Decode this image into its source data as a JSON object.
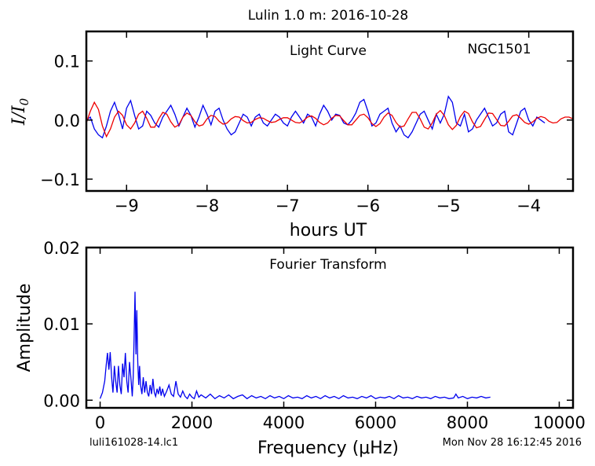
{
  "figure": {
    "title": "Lulin 1.0 m:  2016-10-28",
    "footer_left": "luli161028-14.lc1",
    "footer_right": "Mon Nov 28 16:12:45 2016"
  },
  "chart_data": [
    {
      "type": "line",
      "panel": "light-curve",
      "annotation": "Light Curve",
      "object": "NGC1501",
      "xlabel": "hours UT",
      "ylabel_main": "I/I",
      "ylabel_sub": "0",
      "xlim": [
        -9.5,
        -3.45
      ],
      "ylim": [
        -0.12,
        0.15
      ],
      "xticks": [
        -9,
        -8,
        -7,
        -6,
        -5,
        -4
      ],
      "xtick_labels": [
        "−9",
        "−8",
        "−7",
        "−6",
        "−5",
        "−4"
      ],
      "yticks": [
        -0.1,
        0.0,
        0.1
      ],
      "ytick_labels": [
        "−0.1",
        "0.0",
        "0.1"
      ],
      "grid": false,
      "colors": {
        "data": "#0000ee",
        "fit": "#ee0000"
      },
      "series": [
        {
          "role": "data",
          "x": [
            -9.5,
            -9.45,
            -9.4,
            -9.35,
            -9.3,
            -9.25,
            -9.2,
            -9.15,
            -9.1,
            -9.05,
            -9.0,
            -8.95,
            -8.9,
            -8.85,
            -8.8,
            -8.75,
            -8.7,
            -8.65,
            -8.6,
            -8.55,
            -8.5,
            -8.45,
            -8.4,
            -8.35,
            -8.3,
            -8.25,
            -8.2,
            -8.15,
            -8.1,
            -8.05,
            -8.0,
            -7.95,
            -7.9,
            -7.85,
            -7.8,
            -7.75,
            -7.7,
            -7.65,
            -7.6,
            -7.55,
            -7.5,
            -7.45,
            -7.4,
            -7.35,
            -7.3,
            -7.25,
            -7.2,
            -7.15,
            -7.1,
            -7.05,
            -7.0,
            -6.95,
            -6.9,
            -6.85,
            -6.8,
            -6.75,
            -6.7,
            -6.65,
            -6.6,
            -6.55,
            -6.5,
            -6.45,
            -6.4,
            -6.35,
            -6.3,
            -6.25,
            -6.2,
            -6.15,
            -6.1,
            -6.05,
            -6.0,
            -5.95,
            -5.9,
            -5.85,
            -5.8,
            -5.75,
            -5.7,
            -5.65,
            -5.6,
            -5.55,
            -5.5,
            -5.45,
            -5.4,
            -5.35,
            -5.3,
            -5.25,
            -5.2,
            -5.15,
            -5.1,
            -5.05,
            -5.0,
            -4.95,
            -4.9,
            -4.85,
            -4.8,
            -4.75,
            -4.7,
            -4.65,
            -4.6,
            -4.55,
            -4.5,
            -4.45,
            -4.4,
            -4.35,
            -4.3,
            -4.25,
            -4.2,
            -4.15,
            -4.1,
            -4.05,
            -4.0,
            -3.95,
            -3.9,
            -3.85,
            -3.8
          ],
          "y": [
            0.0,
            0.005,
            -0.015,
            -0.025,
            -0.03,
            -0.01,
            0.015,
            0.03,
            0.01,
            -0.015,
            0.02,
            0.033,
            0.008,
            -0.015,
            -0.01,
            0.015,
            0.008,
            -0.005,
            -0.012,
            0.005,
            0.015,
            0.025,
            0.01,
            -0.01,
            0.005,
            0.02,
            0.008,
            -0.012,
            0.005,
            0.025,
            0.01,
            -0.008,
            0.015,
            0.02,
            0.0,
            -0.015,
            -0.025,
            -0.02,
            -0.005,
            0.01,
            0.005,
            -0.01,
            0.005,
            0.01,
            -0.005,
            -0.01,
            0.0,
            0.01,
            0.005,
            -0.005,
            -0.01,
            0.005,
            0.015,
            0.005,
            -0.005,
            0.01,
            0.005,
            -0.01,
            0.01,
            0.025,
            0.015,
            0.0,
            0.01,
            0.008,
            -0.005,
            -0.008,
            0.0,
            0.012,
            0.03,
            0.035,
            0.015,
            -0.01,
            -0.005,
            0.01,
            0.015,
            0.02,
            -0.005,
            -0.02,
            -0.01,
            -0.025,
            -0.03,
            -0.02,
            -0.005,
            0.01,
            0.015,
            0.0,
            -0.015,
            0.01,
            -0.005,
            0.01,
            0.04,
            0.03,
            -0.005,
            -0.01,
            0.01,
            -0.02,
            -0.015,
            0.0,
            0.01,
            0.02,
            0.005,
            -0.01,
            -0.005,
            0.01,
            0.015,
            -0.02,
            -0.025,
            -0.005,
            0.015,
            0.02,
            0.0,
            -0.01,
            0.005,
            0.0,
            -0.005
          ]
        },
        {
          "role": "fit",
          "x": [
            -9.5,
            -9.45,
            -9.4,
            -9.35,
            -9.3,
            -9.25,
            -9.2,
            -9.15,
            -9.1,
            -9.05,
            -9.0,
            -8.95,
            -8.9,
            -8.85,
            -8.8,
            -8.75,
            -8.7,
            -8.65,
            -8.6,
            -8.55,
            -8.5,
            -8.45,
            -8.4,
            -8.35,
            -8.3,
            -8.25,
            -8.2,
            -8.15,
            -8.1,
            -8.05,
            -8.0,
            -7.95,
            -7.9,
            -7.85,
            -7.8,
            -7.75,
            -7.7,
            -7.65,
            -7.6,
            -7.55,
            -7.5,
            -7.45,
            -7.4,
            -7.35,
            -7.3,
            -7.25,
            -7.2,
            -7.15,
            -7.1,
            -7.05,
            -7.0,
            -6.95,
            -6.9,
            -6.85,
            -6.8,
            -6.75,
            -6.7,
            -6.65,
            -6.6,
            -6.55,
            -6.5,
            -6.45,
            -6.4,
            -6.35,
            -6.3,
            -6.25,
            -6.2,
            -6.15,
            -6.1,
            -6.05,
            -6.0,
            -5.95,
            -5.9,
            -5.85,
            -5.8,
            -5.75,
            -5.7,
            -5.65,
            -5.6,
            -5.55,
            -5.5,
            -5.45,
            -5.4,
            -5.35,
            -5.3,
            -5.25,
            -5.2,
            -5.15,
            -5.1,
            -5.05,
            -5.0,
            -4.95,
            -4.9,
            -4.85,
            -4.8,
            -4.75,
            -4.7,
            -4.65,
            -4.6,
            -4.55,
            -4.5,
            -4.45,
            -4.4,
            -4.35,
            -4.3,
            -4.25,
            -4.2,
            -4.15,
            -4.1,
            -4.05,
            -4.0,
            -3.95,
            -3.9,
            -3.85,
            -3.8,
            -3.75,
            -3.7,
            -3.65,
            -3.6,
            -3.55,
            -3.5,
            -3.45
          ],
          "y": [
            -0.005,
            0.015,
            0.03,
            0.018,
            -0.01,
            -0.028,
            -0.015,
            0.005,
            0.015,
            0.008,
            -0.008,
            -0.015,
            -0.005,
            0.01,
            0.015,
            0.003,
            -0.012,
            -0.012,
            0.002,
            0.013,
            0.01,
            -0.003,
            -0.012,
            -0.008,
            0.005,
            0.012,
            0.008,
            -0.003,
            -0.01,
            -0.008,
            0.002,
            0.008,
            0.006,
            -0.002,
            -0.007,
            -0.005,
            0.002,
            0.006,
            0.005,
            -0.001,
            -0.005,
            -0.004,
            0.001,
            0.004,
            0.003,
            -0.001,
            -0.004,
            -0.003,
            0.001,
            0.004,
            0.004,
            0.0,
            -0.004,
            -0.005,
            -0.001,
            0.005,
            0.007,
            0.003,
            -0.004,
            -0.008,
            -0.005,
            0.003,
            0.008,
            0.007,
            -0.001,
            -0.008,
            -0.008,
            0.0,
            0.008,
            0.01,
            0.004,
            -0.006,
            -0.011,
            -0.006,
            0.005,
            0.012,
            0.008,
            -0.004,
            -0.012,
            -0.01,
            0.002,
            0.013,
            0.013,
            0.002,
            -0.012,
            -0.015,
            -0.005,
            0.01,
            0.016,
            0.008,
            -0.008,
            -0.016,
            -0.009,
            0.006,
            0.015,
            0.011,
            -0.003,
            -0.013,
            -0.011,
            0.001,
            0.012,
            0.011,
            0.001,
            -0.009,
            -0.01,
            -0.002,
            0.007,
            0.009,
            0.003,
            -0.004,
            -0.007,
            -0.003,
            0.003,
            0.006,
            0.004,
            -0.002,
            -0.005,
            -0.004,
            0.002,
            0.005,
            0.005,
            0.002
          ]
        }
      ]
    },
    {
      "type": "line",
      "panel": "fourier-transform",
      "annotation": "Fourier Transform",
      "xlabel": "Frequency (μHz)",
      "ylabel": "Amplitude",
      "xlim": [
        -300,
        10300
      ],
      "ylim": [
        -0.001,
        0.02
      ],
      "xticks": [
        0,
        2000,
        4000,
        6000,
        8000,
        10000
      ],
      "xtick_labels": [
        "0",
        "2000",
        "4000",
        "6000",
        "8000",
        "10000"
      ],
      "yticks": [
        0.0,
        0.01,
        0.02
      ],
      "ytick_labels": [
        "0.00",
        "0.01",
        "0.02"
      ],
      "grid": false,
      "colors": {
        "spectrum": "#0000ee"
      },
      "series": [
        {
          "role": "spectrum",
          "x": [
            0,
            50,
            100,
            130,
            160,
            190,
            220,
            250,
            280,
            310,
            340,
            370,
            400,
            430,
            460,
            490,
            520,
            550,
            580,
            610,
            640,
            670,
            700,
            720,
            740,
            760,
            780,
            800,
            820,
            840,
            860,
            880,
            910,
            940,
            970,
            1000,
            1030,
            1060,
            1090,
            1120,
            1150,
            1180,
            1210,
            1240,
            1270,
            1300,
            1330,
            1360,
            1400,
            1450,
            1500,
            1550,
            1600,
            1650,
            1700,
            1750,
            1800,
            1850,
            1900,
            1950,
            2000,
            2050,
            2100,
            2150,
            2200,
            2300,
            2400,
            2500,
            2600,
            2700,
            2800,
            2900,
            3000,
            3100,
            3200,
            3300,
            3400,
            3500,
            3600,
            3700,
            3800,
            3900,
            4000,
            4100,
            4200,
            4300,
            4400,
            4500,
            4600,
            4700,
            4800,
            4900,
            5000,
            5100,
            5200,
            5300,
            5400,
            5500,
            5600,
            5700,
            5800,
            5900,
            6000,
            6100,
            6200,
            6300,
            6400,
            6500,
            6600,
            6700,
            6800,
            6900,
            7000,
            7100,
            7200,
            7300,
            7400,
            7500,
            7600,
            7700,
            7750,
            7800,
            7900,
            8000,
            8100,
            8200,
            8300,
            8400,
            8500
          ],
          "y": [
            0.0002,
            0.001,
            0.0025,
            0.0045,
            0.0062,
            0.004,
            0.0063,
            0.003,
            0.001,
            0.0045,
            0.0025,
            0.001,
            0.0045,
            0.002,
            0.0008,
            0.0048,
            0.003,
            0.0062,
            0.0025,
            0.001,
            0.005,
            0.003,
            0.0005,
            0.003,
            0.008,
            0.0142,
            0.006,
            0.0118,
            0.005,
            0.002,
            0.0045,
            0.002,
            0.0008,
            0.003,
            0.001,
            0.0025,
            0.001,
            0.0005,
            0.002,
            0.0008,
            0.0028,
            0.001,
            0.0005,
            0.0015,
            0.0008,
            0.0018,
            0.0006,
            0.0015,
            0.0005,
            0.0012,
            0.002,
            0.0008,
            0.0005,
            0.0025,
            0.0008,
            0.0004,
            0.0012,
            0.0005,
            0.0002,
            0.0008,
            0.0004,
            0.0002,
            0.0012,
            0.0004,
            0.0007,
            0.0003,
            0.0008,
            0.0002,
            0.0006,
            0.0003,
            0.0007,
            0.0002,
            0.0005,
            0.0007,
            0.0002,
            0.0006,
            0.0003,
            0.0005,
            0.0002,
            0.0006,
            0.0003,
            0.0005,
            0.0002,
            0.0006,
            0.0003,
            0.0004,
            0.0002,
            0.0006,
            0.0003,
            0.0005,
            0.0002,
            0.0006,
            0.0003,
            0.0005,
            0.0002,
            0.0006,
            0.0003,
            0.0004,
            0.0002,
            0.0005,
            0.0003,
            0.0006,
            0.0002,
            0.0004,
            0.0003,
            0.0005,
            0.0002,
            0.0006,
            0.0003,
            0.0004,
            0.0002,
            0.0005,
            0.0003,
            0.0004,
            0.0002,
            0.0005,
            0.0003,
            0.0004,
            0.0002,
            0.0003,
            0.0008,
            0.0003,
            0.0005,
            0.0002,
            0.0004,
            0.0003,
            0.0005,
            0.0003,
            0.0004
          ]
        }
      ]
    }
  ]
}
